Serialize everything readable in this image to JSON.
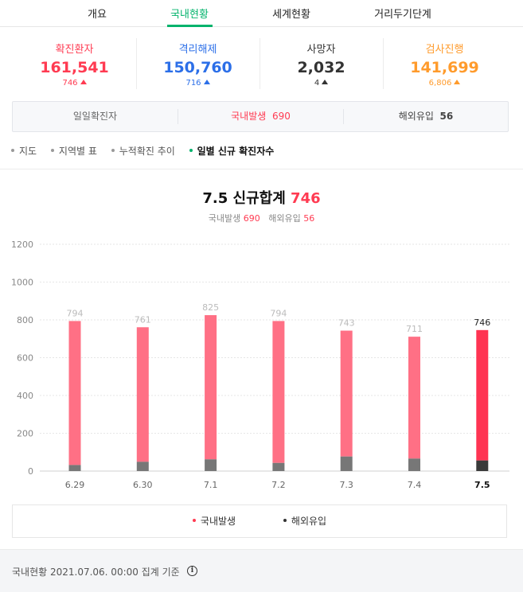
{
  "tabs": [
    {
      "label": "개요",
      "active": false
    },
    {
      "label": "국내현황",
      "active": true
    },
    {
      "label": "세계현황",
      "active": false
    },
    {
      "label": "거리두기단계",
      "active": false
    }
  ],
  "stats": [
    {
      "label": "확진환자",
      "value": "161,541",
      "delta": "746",
      "color": "#ff3b52"
    },
    {
      "label": "격리해제",
      "value": "150,760",
      "delta": "716",
      "color": "#2c6fe8"
    },
    {
      "label": "사망자",
      "value": "2,032",
      "delta": "4",
      "color": "#333333"
    },
    {
      "label": "검사진행",
      "value": "141,699",
      "delta": "6,806",
      "color": "#ff9b2c"
    }
  ],
  "daily": {
    "label": "일일확진자",
    "domestic_label": "국내발생",
    "domestic_value": "690",
    "overseas_label": "해외유입",
    "overseas_value": "56"
  },
  "subnav": [
    {
      "label": "지도",
      "active": false
    },
    {
      "label": "지역별 표",
      "active": false
    },
    {
      "label": "누적확진 추이",
      "active": false
    },
    {
      "label": "일별 신규 확진자수",
      "active": true
    }
  ],
  "chart_header": {
    "title_prefix": "7.5 신규합계",
    "title_total": "746",
    "sub_domestic_label": "국내발생",
    "sub_domestic_value": "690",
    "sub_overseas_label": "해외유입",
    "sub_overseas_value": "56"
  },
  "chart_data": {
    "type": "bar",
    "stacked": true,
    "categories": [
      "6.29",
      "6.30",
      "7.1",
      "7.2",
      "7.3",
      "7.4",
      "7.5"
    ],
    "series": [
      {
        "name": "해외유입",
        "values": [
          32,
          49,
          62,
          43,
          77,
          66,
          56
        ]
      },
      {
        "name": "국내발생",
        "values": [
          762,
          712,
          763,
          751,
          666,
          645,
          690
        ]
      }
    ],
    "totals": [
      794,
      761,
      825,
      794,
      743,
      711,
      746
    ],
    "yticks": [
      0,
      200,
      400,
      600,
      800,
      1000,
      1200
    ],
    "ylim": [
      0,
      1200
    ],
    "grid": true,
    "highlight_index": 6,
    "colors": {
      "domestic": "#ff7085",
      "domestic_highlight": "#ff3452",
      "overseas": "#777777",
      "overseas_highlight": "#3a3a3a"
    }
  },
  "legend": [
    {
      "label": "국내발생",
      "color": "#ff3b52"
    },
    {
      "label": "해외유입",
      "color": "#333333"
    }
  ],
  "footer": {
    "text": "국내현황 2021.07.06. 00:00 집계 기준",
    "icon": "info-icon"
  }
}
